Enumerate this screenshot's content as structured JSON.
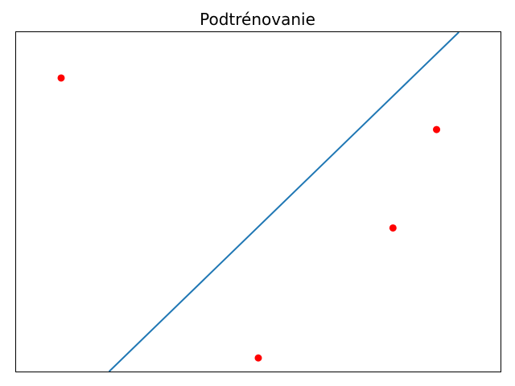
{
  "chart_data": {
    "type": "scatter",
    "title": "Podtrénovanie",
    "xlabel": "",
    "ylabel": "",
    "xlim": [
      0,
      10
    ],
    "ylim": [
      0,
      10
    ],
    "grid": false,
    "axis_ticks": false,
    "points": [
      {
        "x": 0.93,
        "y": 8.65
      },
      {
        "x": 5.0,
        "y": 0.4
      },
      {
        "x": 7.78,
        "y": 4.23
      },
      {
        "x": 8.68,
        "y": 7.13
      }
    ],
    "fit_line": {
      "x": [
        1.92,
        9.14
      ],
      "y": [
        0.0,
        10.0
      ]
    },
    "colors": {
      "points": "#ff0000",
      "line": "#1f77b4",
      "frame": "#000000"
    }
  }
}
